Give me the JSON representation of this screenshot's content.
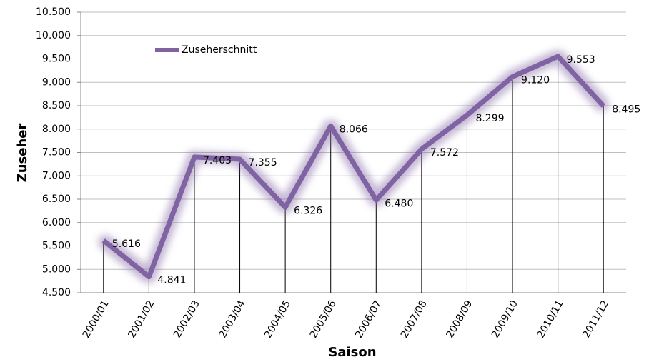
{
  "chart_data": {
    "type": "line",
    "x_label": "Saison",
    "y_label": "Zuseher",
    "categories": [
      "2000/01",
      "2001/02",
      "2002/03",
      "2003/04",
      "2004/05",
      "2005/06",
      "2006/07",
      "2007/08",
      "2008/09",
      "2009/10",
      "2010/11",
      "2011/12"
    ],
    "series": [
      {
        "name": "Zuseherschnitt",
        "color": "#8064a2",
        "values": [
          5616,
          4841,
          7403,
          7355,
          6326,
          8066,
          6480,
          7572,
          8299,
          9120,
          9553,
          8495
        ],
        "value_labels": [
          "5.616",
          "4.841",
          "7.403",
          "7.355",
          "6.326",
          "8.066",
          "6.480",
          "7.572",
          "8.299",
          "9.120",
          "9.553",
          "8.495"
        ]
      }
    ],
    "ylim": [
      4500,
      10500
    ],
    "yticks": [
      {
        "value": 4500,
        "label": "4.500"
      },
      {
        "value": 5000,
        "label": "5.000"
      },
      {
        "value": 5500,
        "label": "5.500"
      },
      {
        "value": 6000,
        "label": "6.000"
      },
      {
        "value": 6500,
        "label": "6.500"
      },
      {
        "value": 7000,
        "label": "7.000"
      },
      {
        "value": 7500,
        "label": "7.500"
      },
      {
        "value": 8000,
        "label": "8.000"
      },
      {
        "value": 8500,
        "label": "8.500"
      },
      {
        "value": 9000,
        "label": "9.000"
      },
      {
        "value": 9500,
        "label": "9.500"
      },
      {
        "value": 10000,
        "label": "10.000"
      },
      {
        "value": 10500,
        "label": "10.500"
      }
    ],
    "grid": true,
    "legend": "upper left"
  }
}
